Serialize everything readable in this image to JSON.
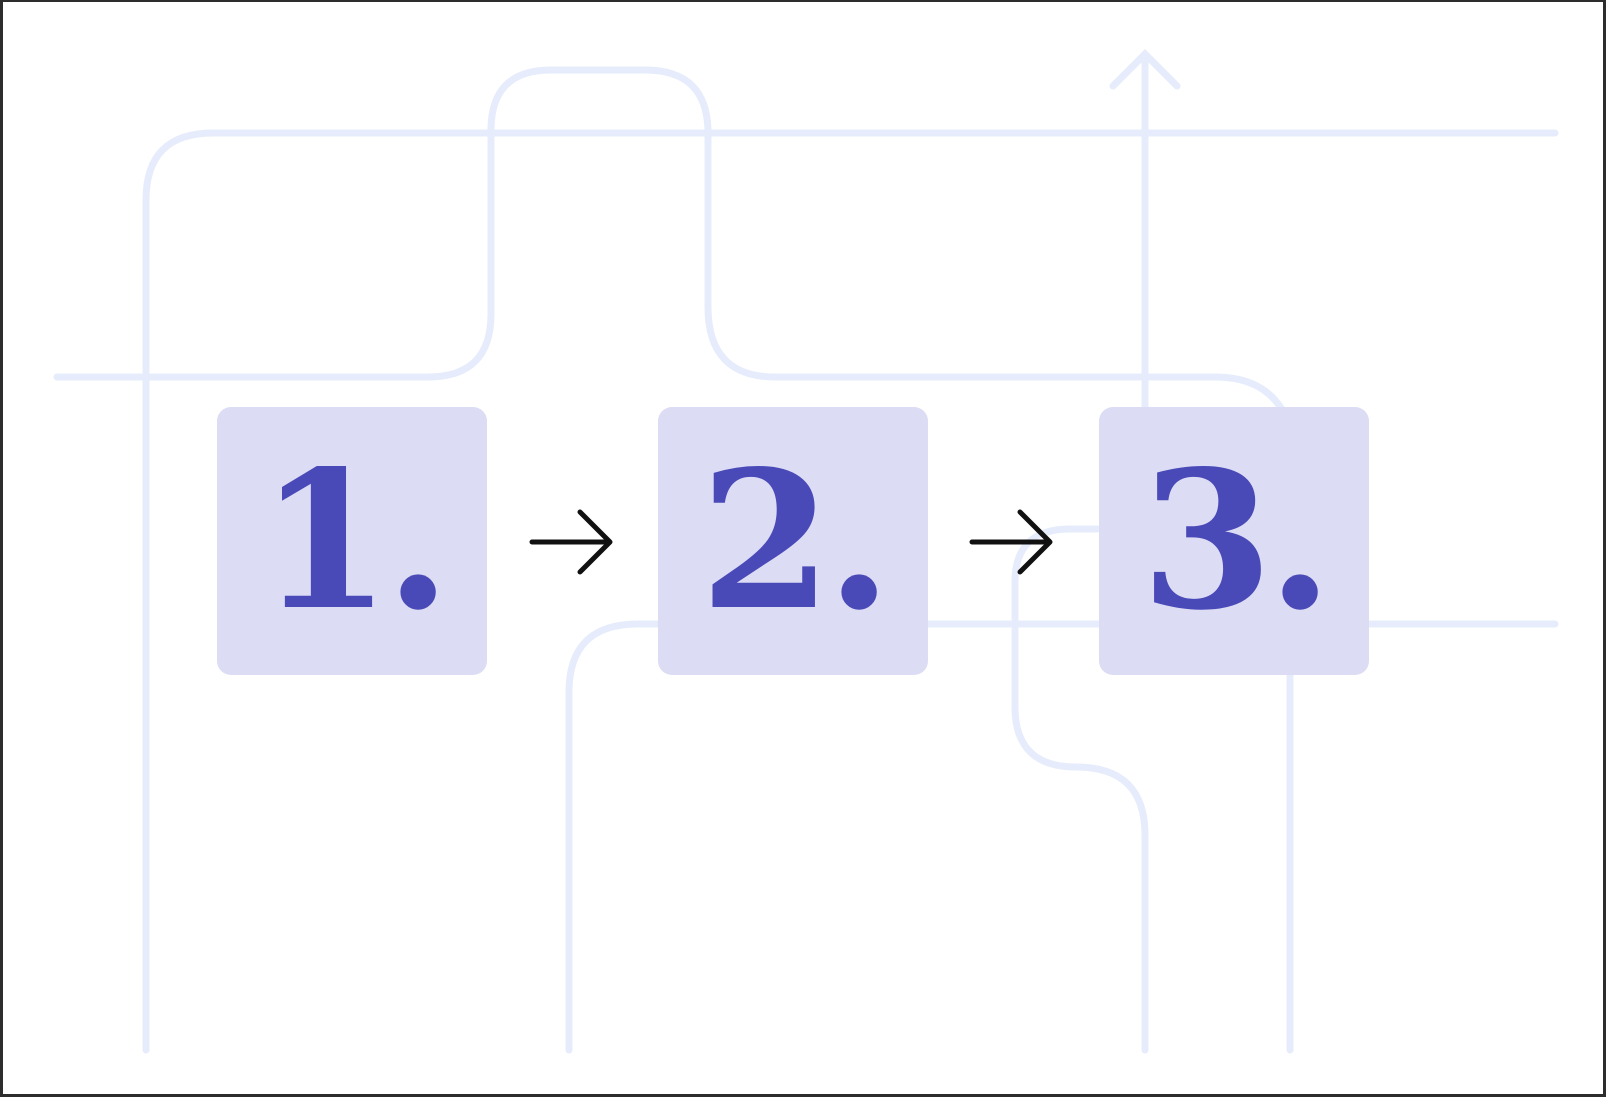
{
  "steps": [
    {
      "label": "1."
    },
    {
      "label": "2."
    },
    {
      "label": "3."
    }
  ],
  "connectors": [
    "arrow-right-icon",
    "arrow-right-icon"
  ],
  "colors": {
    "background": "#ffffff",
    "line": "#e6ecfb",
    "box_fill": "#dcdcf4",
    "number": "#4949b8",
    "arrow": "#111111",
    "frame": "#2d2d2d"
  }
}
